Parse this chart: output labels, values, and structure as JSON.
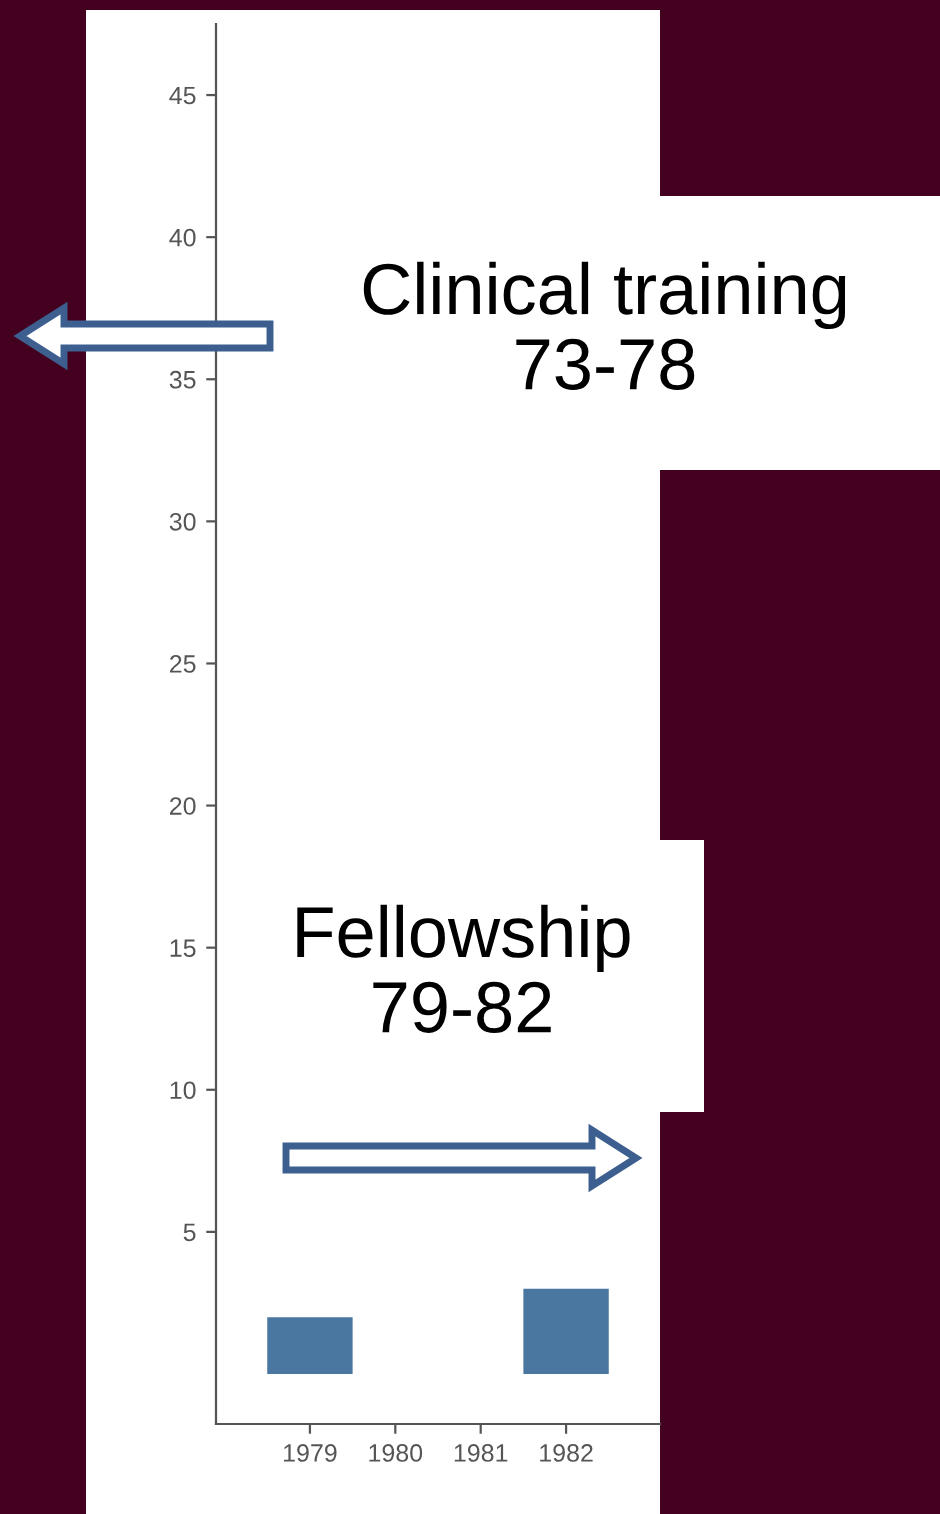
{
  "chart_data": {
    "type": "bar",
    "x": [
      1979,
      1982
    ],
    "values": [
      2,
      3
    ],
    "color": "#4a77a0",
    "xlim": [
      1977.9,
      1983.1
    ],
    "xticks": [
      1979,
      1980,
      1981,
      1982
    ],
    "ylim": [
      -1.76,
      47.5
    ],
    "yticks": [
      5,
      10,
      15,
      20,
      25,
      30,
      35,
      40,
      45
    ],
    "grid": false,
    "annotations": [
      "Clinical training\n73-78",
      "Fellowship\n79-82"
    ]
  }
}
